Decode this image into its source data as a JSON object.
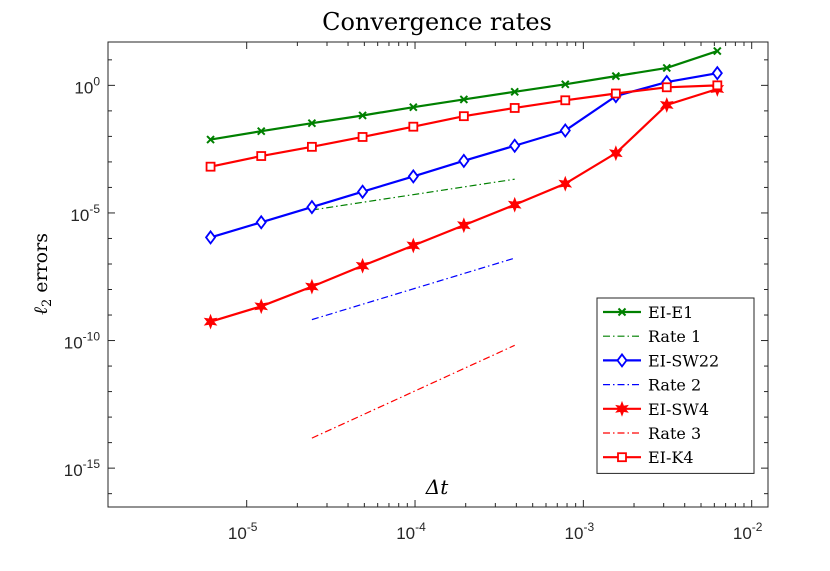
{
  "chart_data": {
    "type": "line",
    "title": "Convergence rates",
    "xlabel": "Δt",
    "ylabel": "ℓ2 errors",
    "xscale": "log",
    "yscale": "log",
    "xlim": [
      1.5e-06,
      0.0125
    ],
    "ylim": [
      3e-17,
      50
    ],
    "x_ticks": [
      {
        "value": 1e-05,
        "base": "10",
        "exp": "-5"
      },
      {
        "value": 0.0001,
        "base": "10",
        "exp": "-4"
      },
      {
        "value": 0.001,
        "base": "10",
        "exp": "-3"
      },
      {
        "value": 0.01,
        "base": "10",
        "exp": "-2"
      }
    ],
    "y_ticks": [
      {
        "value": 1,
        "base": "10",
        "exp": "0"
      },
      {
        "value": 1e-05,
        "base": "10",
        "exp": "-5"
      },
      {
        "value": 1e-10,
        "base": "10",
        "exp": "-10"
      },
      {
        "value": 1e-15,
        "base": "10",
        "exp": "-15"
      }
    ],
    "grid": false,
    "legend_position": "bottom-right",
    "series": [
      {
        "name": "EI-E1",
        "color": "#008000",
        "line": "solid",
        "marker": "x",
        "x": [
          6.1e-06,
          1.22e-05,
          2.44e-05,
          4.88e-05,
          9.77e-05,
          0.000195,
          0.000391,
          0.000781,
          0.00156,
          0.00313,
          0.00625
        ],
        "y": [
          0.0075,
          0.016,
          0.033,
          0.066,
          0.14,
          0.28,
          0.56,
          1.1,
          2.3,
          4.8,
          22
        ]
      },
      {
        "name": "Rate 1",
        "color": "#008000",
        "line": "dashdot",
        "marker": "none",
        "x": [
          2.44e-05,
          0.000391
        ],
        "y": [
          1.3e-05,
          0.00021
        ]
      },
      {
        "name": "EI-SW22",
        "color": "#0000ff",
        "line": "solid",
        "marker": "diamond",
        "x": [
          6.1e-06,
          1.22e-05,
          2.44e-05,
          4.88e-05,
          9.77e-05,
          0.000195,
          0.000391,
          0.000781,
          0.00156,
          0.00313,
          0.00625
        ],
        "y": [
          1.1e-06,
          4.3e-06,
          1.7e-05,
          6.8e-05,
          0.00027,
          0.0011,
          0.0043,
          0.017,
          0.38,
          1.35,
          3.0
        ]
      },
      {
        "name": "Rate 2",
        "color": "#0000ff",
        "line": "dashdot",
        "marker": "none",
        "x": [
          2.44e-05,
          0.000391
        ],
        "y": [
          6.6e-10,
          1.7e-07
        ]
      },
      {
        "name": "EI-SW4",
        "color": "#ff0000",
        "line": "solid",
        "marker": "star",
        "x": [
          6.1e-06,
          1.22e-05,
          2.44e-05,
          4.88e-05,
          9.77e-05,
          0.000195,
          0.000391,
          0.000781,
          0.00156,
          0.00313,
          0.00625
        ],
        "y": [
          5.5e-10,
          2.2e-09,
          1.3e-08,
          8.5e-08,
          5.3e-07,
          3.3e-06,
          2.1e-05,
          0.00014,
          0.0022,
          0.17,
          0.72
        ]
      },
      {
        "name": "Rate 3",
        "color": "#ff0000",
        "line": "dashdot",
        "marker": "none",
        "x": [
          2.44e-05,
          0.000391
        ],
        "y": [
          1.5e-14,
          6.5e-11
        ]
      },
      {
        "name": "EI-K4",
        "color": "#ff0000",
        "line": "solid",
        "marker": "square",
        "x": [
          6.1e-06,
          1.22e-05,
          2.44e-05,
          4.88e-05,
          9.77e-05,
          0.000195,
          0.000391,
          0.000781,
          0.00156,
          0.00313,
          0.00625
        ],
        "y": [
          0.00065,
          0.0017,
          0.0039,
          0.0095,
          0.024,
          0.062,
          0.13,
          0.26,
          0.48,
          0.84,
          1.0
        ]
      }
    ]
  }
}
